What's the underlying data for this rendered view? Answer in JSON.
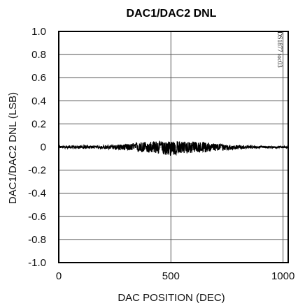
{
  "chart_data": {
    "type": "line",
    "title": "DAC1/DAC2 DNL",
    "xlabel": "DAC POSITION (DEC)",
    "ylabel": "DAC1/DAC2 DNL (LSB)",
    "side_note": "DS1877 toc03",
    "xlim": [
      0,
      1023
    ],
    "ylim": [
      -1.0,
      1.0
    ],
    "x_ticks": [
      "0",
      "500",
      "1000"
    ],
    "x_tick_values": [
      0,
      500,
      1000
    ],
    "y_ticks": [
      "1.0",
      "0.8",
      "0.6",
      "0.4",
      "0.2",
      "0",
      "-0.2",
      "-0.4",
      "-0.6",
      "-0.8",
      "-1.0"
    ],
    "y_tick_values": [
      1.0,
      0.8,
      0.6,
      0.4,
      0.2,
      0,
      -0.2,
      -0.4,
      -0.6,
      -0.8,
      -1.0
    ],
    "grid": true,
    "series": [
      {
        "name": "",
        "color": "#000000",
        "envelope": {
          "description_free": true,
          "x": [
            0,
            100,
            200,
            280,
            340,
            380,
            420,
            460,
            500,
            540,
            580,
            620,
            660,
            700,
            760,
            820,
            900,
            1023
          ],
          "upper": [
            0.01,
            0.01,
            0.012,
            0.02,
            0.035,
            0.045,
            0.05,
            0.05,
            0.055,
            0.05,
            0.05,
            0.045,
            0.04,
            0.03,
            0.02,
            0.012,
            0.008,
            0.006
          ],
          "lower": [
            -0.01,
            -0.012,
            -0.015,
            -0.025,
            -0.04,
            -0.05,
            -0.055,
            -0.06,
            -0.08,
            -0.06,
            -0.055,
            -0.05,
            -0.045,
            -0.035,
            -0.025,
            -0.015,
            -0.01,
            -0.008
          ]
        }
      }
    ]
  }
}
